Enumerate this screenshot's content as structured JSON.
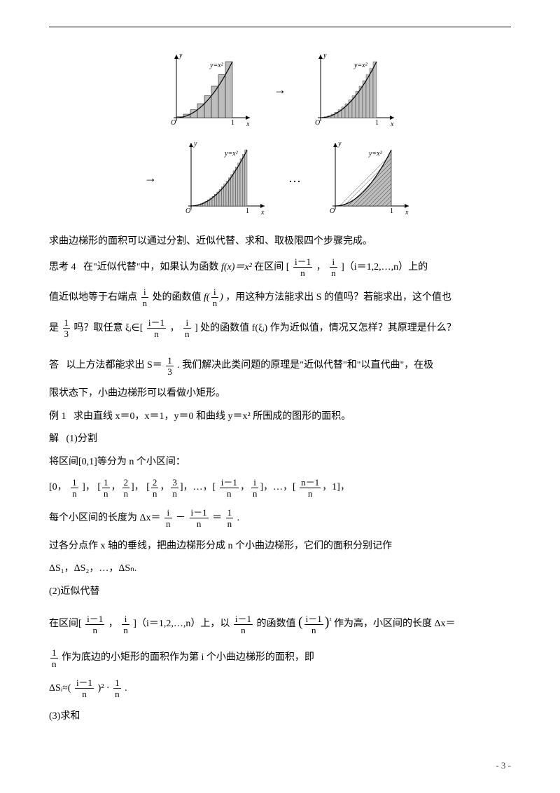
{
  "figure": {
    "chart": {
      "type": "curve-approximation",
      "axis_color": "#000000",
      "curve_label": "y=x²",
      "x_label": "x",
      "y_label": "y",
      "origin_label": "O",
      "x_tick": "1",
      "label_fontsize": 10,
      "bg": "#ffffff",
      "fill_color": "#bdbdbd",
      "stroke_color": "#000000",
      "panels": [
        {
          "bars": 8,
          "style": "rects"
        },
        {
          "bars": 16,
          "style": "rects"
        },
        {
          "bars": 24,
          "style": "rects"
        },
        {
          "bars": 0,
          "style": "hatched"
        }
      ]
    },
    "arrows": {
      "a1": "→",
      "a2": "→",
      "dots": "…"
    },
    "caption_main": "求曲边梯形的面积可以通过分割、近似代替、求和、取极限四个步骤完成。"
  },
  "think4": {
    "label": "思考 4",
    "text1a": "在\"近似代替\"中，如果认为函数 ",
    "fx": "f(x)＝x²",
    "text1b": " 在区间 [",
    "fr1_num": "i－1",
    "fr1_den": "n",
    "comma": "，",
    "fr2_num": "i",
    "fr2_den": "n",
    "text1c": "]（i＝1,2,…,n）上的",
    "text2a": "值近似地等于右端点",
    "fr3_num": "i",
    "fr3_den": "n",
    "text2b": "处的函数值 ",
    "f_in": "f(",
    "f_end": ")",
    "text2c": "，用这种方法能求出 S 的值吗？若能求出，这个值也",
    "text3a": "是",
    "fr4_num": "1",
    "fr4_den": "3",
    "text3b": "吗？取任意 ξᵢ∈[",
    "text3c": "] 处的函数值 f(ξᵢ) 作为近似值，情况又怎样？其原理是什么？"
  },
  "ans": {
    "label": "答",
    "t1a": "以上方法都能求出 S＝",
    "fr_num": "1",
    "fr_den": "3",
    "t1b": ". 我们解决此类问题的原理是\"近似代替\"和\"以直代曲\"，在极",
    "t2": "限状态下，小曲边梯形可以看做小矩形。"
  },
  "ex1": {
    "label": "例 1",
    "q": "求由直线 x＝0，x＝1，y＝0 和曲线 y＝x² 所围成的图形的面积。",
    "sol_label": "解",
    "step1": "(1)分割",
    "step1_l1": "将区间[0,1]等分为 n 个小区间：",
    "intervals": {
      "open": "[0，",
      "c": "，",
      "close": "]，",
      "i1n": "1",
      "i1d": "n",
      "i2n": "1",
      "i2d": "n",
      "i3n": "2",
      "i3d": "n",
      "i4n": "2",
      "i4d": "n",
      "i5n": "3",
      "i5d": "n",
      "dots": "，…，[",
      "i6n": "i－1",
      "i6d": "n",
      "i7n": "i",
      "i7d": "n",
      "dots2": "]，…，[",
      "i8n": "n－1",
      "i8d": "n",
      "end": "，1]，"
    },
    "step1_l3a": "每个小区间的长度为 Δx＝",
    "dx1n": "i",
    "dx1d": "n",
    "minus": "－",
    "dx2n": "i－1",
    "dx2d": "n",
    "eq": "＝",
    "dx3n": "1",
    "dx3d": "n",
    "dot": ".",
    "step1_l4": "过各分点作 x 轴的垂线，把曲边梯形分成 n 个小曲边梯形，它们的面积分别记作",
    "step1_l5": "ΔS₁，ΔS₂，…，ΔSₙ.",
    "step2": "(2)近似代替",
    "step2_l1a": "在区间[",
    "step2_l1b": "]（i＝1,2,…,n）上，以 ",
    "step2_l1c": " 的函数值 ",
    "lp": "(",
    "rp": ")",
    "sq": "²",
    "step2_l1d": "作为高，小区间的长度 Δx＝",
    "step2_l2": "作为底边的小矩形的面积作为第 i 个小曲边梯形的面积，即",
    "step2_l3a": "ΔSᵢ≈(",
    "step2_l3b": ")² · ",
    "step3": "(3)求和"
  },
  "footer": {
    "page": "- 3 -"
  }
}
